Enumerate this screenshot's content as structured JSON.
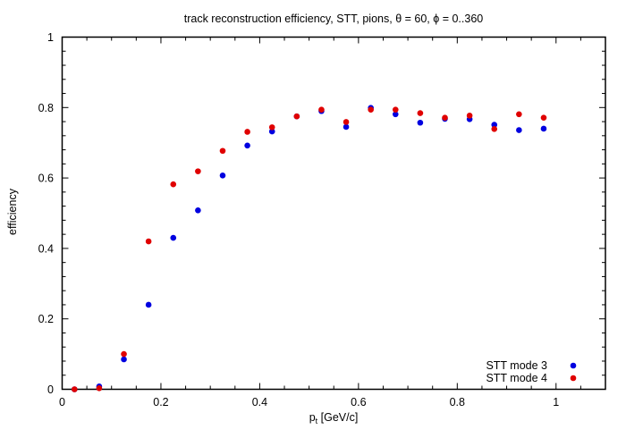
{
  "chart_data": {
    "type": "scatter",
    "title": "track reconstruction efficiency, STT, pions, θ = 60, ϕ = 0..360",
    "xlabel_main": "p",
    "xlabel_sub": "t",
    "xlabel_rest": " [GeV/c]",
    "ylabel": "efficiency",
    "xlim": [
      0,
      1.1
    ],
    "ylim": [
      0,
      1
    ],
    "x_major_step": 0.2,
    "x_minor_step": 0.05,
    "y_major_step": 0.2,
    "y_minor_step": 0.04,
    "x_tick_labels": [
      "0",
      "0.2",
      "0.4",
      "0.6",
      "0.8",
      "1"
    ],
    "y_tick_labels": [
      "0",
      "0.2",
      "0.4",
      "0.6",
      "0.8",
      "1"
    ],
    "grid": false,
    "legend_position": "bottom-right",
    "x": [
      0.025,
      0.075,
      0.125,
      0.175,
      0.225,
      0.275,
      0.325,
      0.375,
      0.425,
      0.475,
      0.525,
      0.575,
      0.625,
      0.675,
      0.725,
      0.775,
      0.825,
      0.875,
      0.925,
      0.975
    ],
    "series": [
      {
        "name": "STT mode 3",
        "color": "#0000e0",
        "values": [
          0.0,
          0.008,
          0.085,
          0.24,
          0.43,
          0.508,
          0.607,
          0.692,
          0.732,
          0.775,
          0.79,
          0.745,
          0.799,
          0.781,
          0.757,
          0.768,
          0.767,
          0.751,
          0.736,
          0.74
        ]
      },
      {
        "name": "STT mode 4",
        "color": "#e00000",
        "values": [
          0.0,
          0.003,
          0.1,
          0.42,
          0.582,
          0.619,
          0.677,
          0.731,
          0.744,
          0.775,
          0.794,
          0.759,
          0.794,
          0.794,
          0.784,
          0.771,
          0.777,
          0.739,
          0.781,
          0.771
        ]
      }
    ]
  }
}
